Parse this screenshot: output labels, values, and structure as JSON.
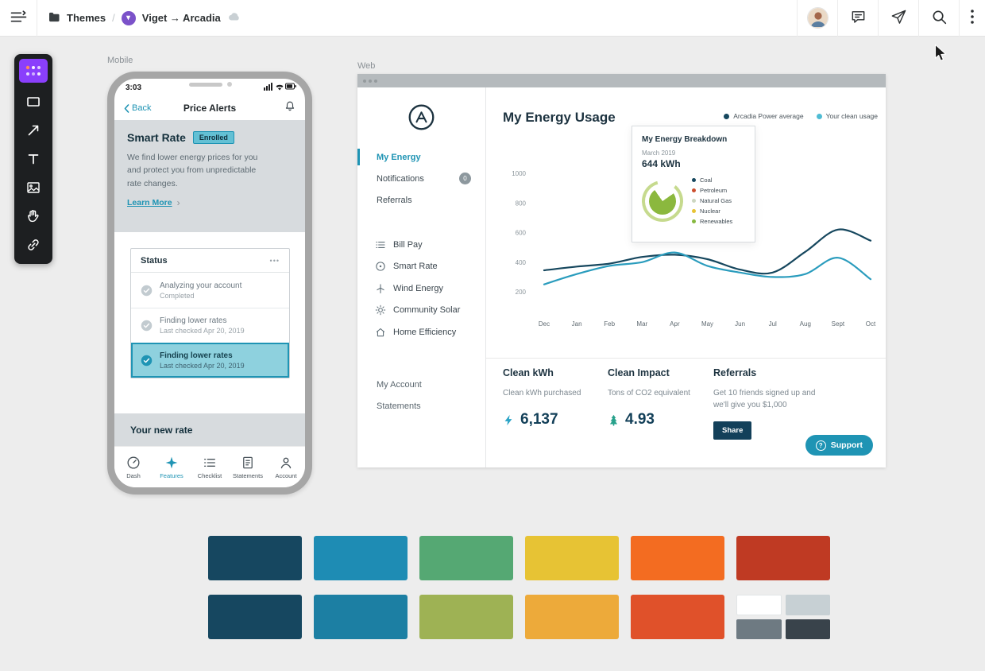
{
  "topbar": {
    "breadcrumb": {
      "folder": "Themes",
      "separator": "/",
      "title": "Viget → Arcadia"
    }
  },
  "canvas": {
    "mobile_label": "Mobile",
    "web_label": "Web"
  },
  "mobile": {
    "status_time": "3:03",
    "nav": {
      "back": "Back",
      "title": "Price Alerts"
    },
    "smart_rate": {
      "title": "Smart Rate",
      "badge": "Enrolled",
      "body": "We find lower energy prices for you and protect you from unpredictable rate changes.",
      "link": "Learn More"
    },
    "status_card": {
      "title": "Status",
      "menu": "•••",
      "rows": [
        {
          "title": "Analyzing your account",
          "subtitle": "Completed",
          "highlighted": false
        },
        {
          "title": "Finding lower rates",
          "subtitle": "Last checked Apr 20, 2019",
          "highlighted": false
        },
        {
          "title": "Finding lower rates",
          "subtitle": "Last checked Apr 20, 2019",
          "highlighted": true
        }
      ]
    },
    "new_rate_label": "Your new rate",
    "tabbar": [
      {
        "label": "Dash",
        "icon": "dash-icon",
        "active": false
      },
      {
        "label": "Features",
        "icon": "features-icon",
        "active": true
      },
      {
        "label": "Checklist",
        "icon": "checklist-icon",
        "active": false
      },
      {
        "label": "Statements",
        "icon": "statements-icon",
        "active": false
      },
      {
        "label": "Account",
        "icon": "account-icon",
        "active": false
      }
    ]
  },
  "web": {
    "sidebar": {
      "primary": [
        {
          "label": "My Energy",
          "active": true
        },
        {
          "label": "Notifications",
          "active": false,
          "badge": "0"
        },
        {
          "label": "Referrals",
          "active": false
        }
      ],
      "secondary": [
        {
          "label": "Bill Pay",
          "icon": "bill-pay-icon"
        },
        {
          "label": "Smart Rate",
          "icon": "smart-rate-icon"
        },
        {
          "label": "Wind Energy",
          "icon": "wind-energy-icon"
        },
        {
          "label": "Community Solar",
          "icon": "community-solar-icon"
        },
        {
          "label": "Home Efficiency",
          "icon": "home-efficiency-icon"
        }
      ],
      "tertiary": [
        {
          "label": "My Account"
        },
        {
          "label": "Statements"
        }
      ]
    },
    "main": {
      "title": "My Energy Usage",
      "legend": [
        {
          "label": "Arcadia Power average",
          "color": "#16475e"
        },
        {
          "label": "Your clean usage",
          "color": "#4fbcd4"
        }
      ],
      "tooltip": {
        "title": "My Energy Breakdown",
        "date": "March 2019",
        "value": "644 kWh",
        "pie_ring_color": "#c6da8e",
        "pie_fill_color": "#8bb83e",
        "legend": [
          {
            "label": "Coal",
            "color": "#16475e"
          },
          {
            "label": "Petroleum",
            "color": "#cc4e2e"
          },
          {
            "label": "Natural Gas",
            "color": "#ccd6c0"
          },
          {
            "label": "Nuclear",
            "color": "#e7c334"
          },
          {
            "label": "Renewables",
            "color": "#86b83f"
          }
        ]
      },
      "stats": [
        {
          "title": "Clean kWh",
          "subtitle": "Clean kWh purchased",
          "value": "6,137",
          "icon": "bolt-icon"
        },
        {
          "title": "Clean Impact",
          "subtitle": "Tons of CO2 equivalent",
          "value": "4.93",
          "icon": "tree-icon"
        },
        {
          "title": "Referrals",
          "subtitle": "Get 10 friends signed up and we'll give you $1,000",
          "button": "Share"
        }
      ],
      "support_label": "Support"
    }
  },
  "chart_data": {
    "type": "line",
    "x": [
      "Dec",
      "Jan",
      "Feb",
      "Mar",
      "Apr",
      "May",
      "Jun",
      "Jul",
      "Aug",
      "Sept",
      "Oct"
    ],
    "y_ticks": [
      200,
      400,
      600,
      800,
      1000
    ],
    "ylim": [
      150,
      1100
    ],
    "grid": false,
    "legend_position": "top-right",
    "series": [
      {
        "name": "Arcadia Power average",
        "color": "#16475e",
        "values": [
          345,
          370,
          390,
          435,
          450,
          420,
          350,
          330,
          470,
          620,
          545
        ]
      },
      {
        "name": "Your clean usage",
        "color": "#2a9cbd",
        "values": [
          250,
          320,
          375,
          400,
          465,
          375,
          330,
          300,
          320,
          430,
          285
        ]
      }
    ]
  },
  "palette": {
    "rows": [
      [
        "#164760",
        "#1e8cb4",
        "#55a873",
        "#e7c334",
        "#f36c21",
        "#bf3a23"
      ],
      [
        "#164760",
        "#1c7fa3",
        "#9eb254",
        "#edaa3a",
        "#e0512a",
        {
          "quad": [
            "#ffffff",
            "#c7d0d4",
            "#6e7a82",
            "#39434b"
          ]
        }
      ]
    ]
  },
  "colors": {
    "accent": "#1f94b4",
    "navy": "#13405a"
  }
}
